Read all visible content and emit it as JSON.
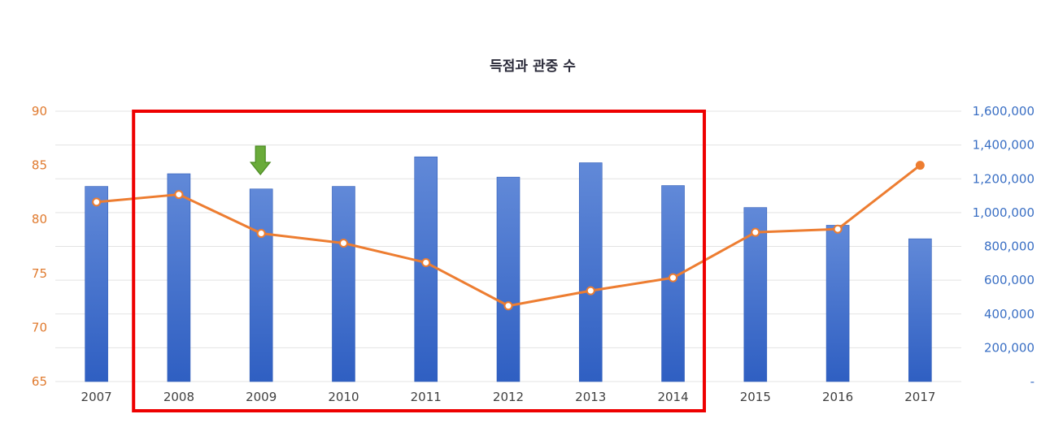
{
  "chart_data": {
    "type": "bar",
    "title": "득점과 관중 수",
    "categories": [
      "2007",
      "2008",
      "2009",
      "2010",
      "2011",
      "2012",
      "2013",
      "2014",
      "2015",
      "2016",
      "2017"
    ],
    "series": [
      {
        "name": "",
        "kind": "bar",
        "axis": "right",
        "values": [
          1155000,
          1230000,
          1140000,
          1155000,
          1330000,
          1210000,
          1295000,
          1160000,
          1030000,
          925000,
          845000
        ]
      },
      {
        "name": "",
        "kind": "line",
        "axis": "left",
        "values": [
          81.6,
          82.3,
          78.7,
          77.8,
          76.0,
          72.0,
          73.4,
          74.6,
          78.8,
          79.1,
          85.0
        ]
      }
    ],
    "yleft": {
      "lim": [
        65,
        90
      ],
      "ticks": [
        "65",
        "70",
        "75",
        "80",
        "85",
        "90"
      ],
      "color": "#e07a2e"
    },
    "yright": {
      "lim": [
        0,
        1600000
      ],
      "ticks": [
        "-",
        "200,000",
        "400,000",
        "600,000",
        "800,000",
        "1,000,000",
        "1,200,000",
        "1,400,000",
        "1,600,000"
      ],
      "color": "#3a6fc4"
    },
    "grid": true,
    "colors": {
      "bar": "#3f70cf",
      "line": "#ed7d31",
      "highlight_box": "#ee0000",
      "arrow": "#6aab3a"
    },
    "annotations": {
      "highlight_box": {
        "from": "2008",
        "to": "2014"
      },
      "arrow": {
        "at": "2009",
        "direction": "down"
      }
    }
  }
}
